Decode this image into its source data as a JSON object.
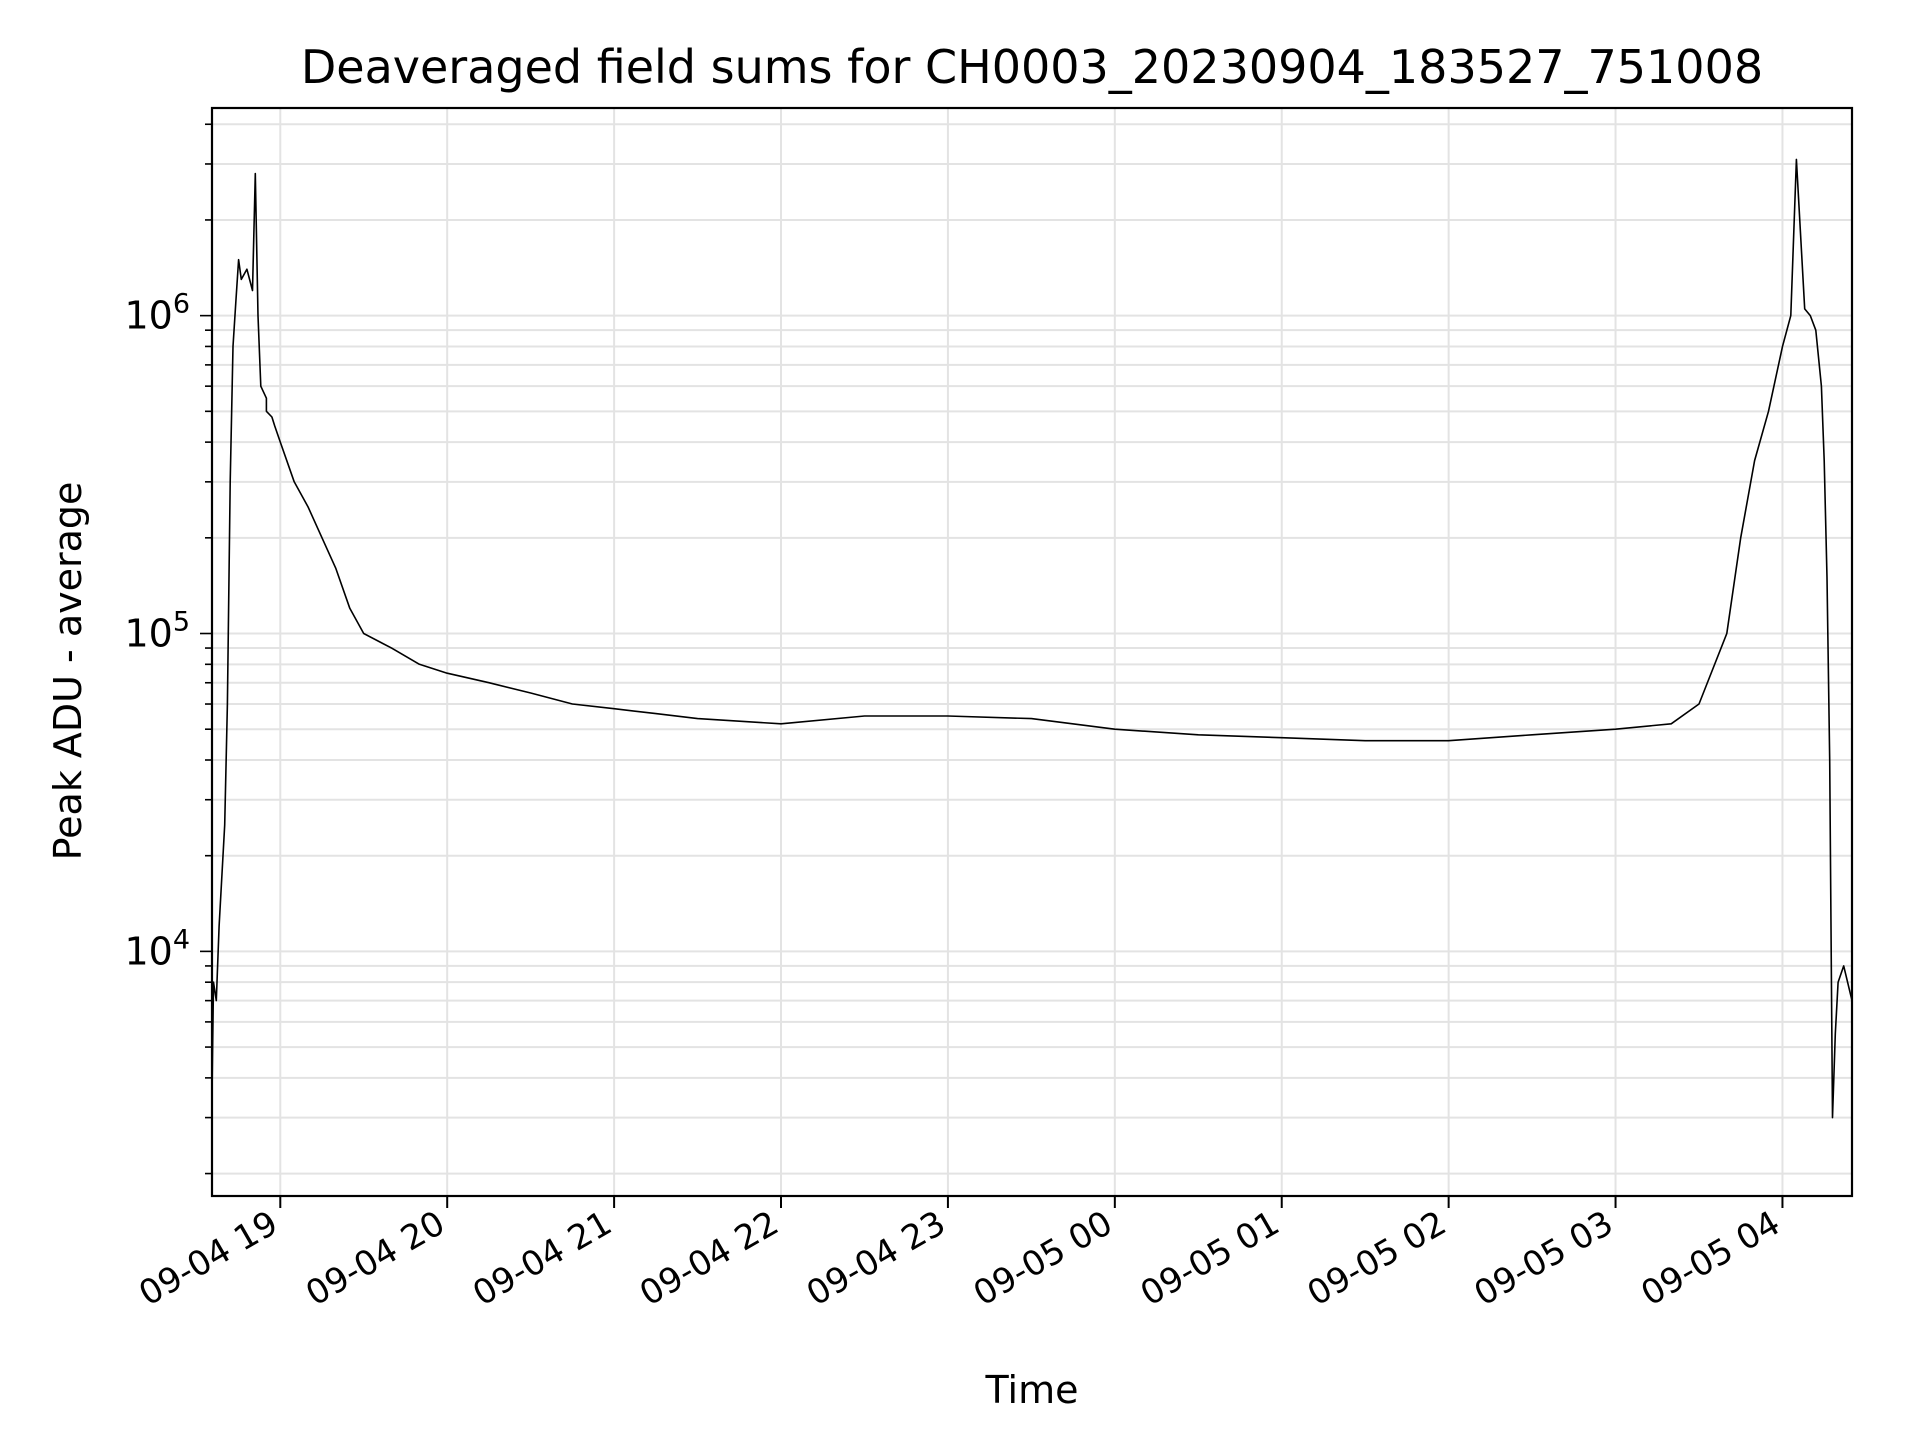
{
  "chart_data": {
    "type": "line",
    "title": "Deaveraged field sums for CH0003_20230904_183527_751008",
    "xlabel": "Time",
    "ylabel": "Peak ADU - average",
    "yscale": "log",
    "ylim": [
      1700,
      4500000
    ],
    "xlim": [
      "2023-09-04 18:35:27",
      "2023-09-05 04:25:00"
    ],
    "x_ticks": [
      {
        "time": "2023-09-04 19:00",
        "label": "09-04 19"
      },
      {
        "time": "2023-09-04 20:00",
        "label": "09-04 20"
      },
      {
        "time": "2023-09-04 21:00",
        "label": "09-04 21"
      },
      {
        "time": "2023-09-04 22:00",
        "label": "09-04 22"
      },
      {
        "time": "2023-09-04 23:00",
        "label": "09-04 23"
      },
      {
        "time": "2023-09-05 00:00",
        "label": "09-05 00"
      },
      {
        "time": "2023-09-05 01:00",
        "label": "09-05 01"
      },
      {
        "time": "2023-09-05 02:00",
        "label": "09-05 02"
      },
      {
        "time": "2023-09-05 03:00",
        "label": "09-05 03"
      },
      {
        "time": "2023-09-05 04:00",
        "label": "09-05 04"
      }
    ],
    "y_ticks": [
      {
        "value": 10000,
        "base": "10",
        "exp": "4"
      },
      {
        "value": 100000,
        "base": "10",
        "exp": "5"
      },
      {
        "value": 1000000,
        "base": "10",
        "exp": "6"
      }
    ],
    "grid": true,
    "line_color": "#000000",
    "series": [
      {
        "x": [
          "2023-09-04 18:35:27",
          "2023-09-04 18:36",
          "2023-09-04 18:37",
          "2023-09-04 18:38",
          "2023-09-04 18:40",
          "2023-09-04 18:41",
          "2023-09-04 18:42",
          "2023-09-04 18:43",
          "2023-09-04 18:44",
          "2023-09-04 18:45",
          "2023-09-04 18:46",
          "2023-09-04 18:48",
          "2023-09-04 18:50",
          "2023-09-04 18:51",
          "2023-09-04 18:52",
          "2023-09-04 18:53",
          "2023-09-04 18:55",
          "2023-09-04 18:55",
          "2023-09-04 18:57",
          "2023-09-04 18:58",
          "2023-09-04 19:00",
          "2023-09-04 19:05",
          "2023-09-04 19:10",
          "2023-09-04 19:15",
          "2023-09-04 19:20",
          "2023-09-04 19:25",
          "2023-09-04 19:30",
          "2023-09-04 19:40",
          "2023-09-04 19:50",
          "2023-09-04 20:00",
          "2023-09-04 20:15",
          "2023-09-04 20:30",
          "2023-09-04 20:45",
          "2023-09-04 21:00",
          "2023-09-04 21:15",
          "2023-09-04 21:30",
          "2023-09-04 21:45",
          "2023-09-04 22:00",
          "2023-09-04 22:30",
          "2023-09-04 23:00",
          "2023-09-04 23:30",
          "2023-09-05 00:00",
          "2023-09-05 00:30",
          "2023-09-05 01:00",
          "2023-09-05 01:30",
          "2023-09-05 02:00",
          "2023-09-05 02:30",
          "2023-09-05 03:00",
          "2023-09-05 03:20",
          "2023-09-05 03:30",
          "2023-09-05 03:40",
          "2023-09-05 03:45",
          "2023-09-05 03:50",
          "2023-09-05 03:55",
          "2023-09-05 04:00",
          "2023-09-05 04:03",
          "2023-09-05 04:05",
          "2023-09-05 04:08",
          "2023-09-05 04:10",
          "2023-09-05 04:12",
          "2023-09-05 04:14",
          "2023-09-05 04:15",
          "2023-09-05 04:16",
          "2023-09-05 04:17",
          "2023-09-05 04:18",
          "2023-09-05 04:19",
          "2023-09-05 04:20",
          "2023-09-05 04:22",
          "2023-09-05 04:25"
        ],
        "y": [
          3500,
          8000,
          7000,
          12000,
          25000,
          60000,
          300000,
          800000,
          1100000,
          1500000,
          1300000,
          1400000,
          1200000,
          2800000,
          1000000,
          600000,
          550000,
          500000,
          480000,
          450000,
          400000,
          300000,
          250000,
          200000,
          160000,
          120000,
          100000,
          90000,
          80000,
          75000,
          70000,
          65000,
          60000,
          58000,
          56000,
          54000,
          53000,
          52000,
          55000,
          55000,
          54000,
          50000,
          48000,
          47000,
          46000,
          46000,
          48000,
          50000,
          52000,
          60000,
          100000,
          200000,
          350000,
          500000,
          800000,
          1000000,
          3100000,
          1050000,
          1000000,
          900000,
          600000,
          350000,
          150000,
          40000,
          3000,
          5500,
          8000,
          9000,
          7000
        ]
      }
    ]
  }
}
